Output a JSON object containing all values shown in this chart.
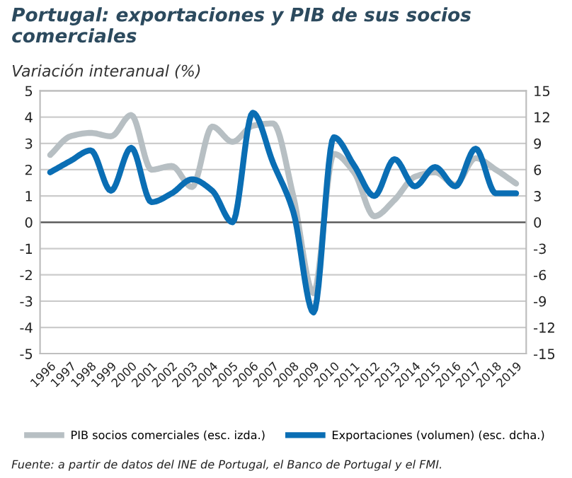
{
  "chart_data": {
    "type": "line",
    "title": "Portugal: exportaciones y PIB de sus socios comerciales",
    "subtitle": "Variación interanual (%)",
    "categories": [
      "1996",
      "1997",
      "1998",
      "1999",
      "2000",
      "2001",
      "2002",
      "2003",
      "2004",
      "2005",
      "2006",
      "2007",
      "2008",
      "2009",
      "2010",
      "2011",
      "2012",
      "2013",
      "2014",
      "2015",
      "2016",
      "2017",
      "2018",
      "2019"
    ],
    "series": [
      {
        "name": "PIB socios comerciales (esc. izda.)",
        "color": "#b7bfc3",
        "values": [
          2.56,
          3.27,
          3.4,
          3.27,
          4.08,
          2.0,
          2.14,
          1.34,
          3.64,
          3.06,
          3.67,
          3.76,
          1.0,
          -2.7,
          2.6,
          1.9,
          0.23,
          0.85,
          1.73,
          1.9,
          1.43,
          2.44,
          2.0,
          1.47
        ]
      },
      {
        "name": "Exportaciones (volumen) (esc. dcha.)",
        "color": "#0a6eb4",
        "axis": "y2",
        "values": [
          5.7,
          7.0,
          8.2,
          3.6,
          8.5,
          2.3,
          3.3,
          4.9,
          3.6,
          0,
          12.5,
          6.8,
          1.2,
          -10.3,
          9.7,
          6.5,
          3.0,
          7.2,
          4.1,
          6.3,
          4.1,
          8.4,
          3.3,
          3.3
        ]
      }
    ],
    "ylim": [
      -5,
      5
    ],
    "yticks": [
      -5,
      -4,
      -3,
      -2,
      -1,
      0,
      1,
      2,
      3,
      4,
      5
    ],
    "y2lim": [
      -15,
      15
    ],
    "y2ticks": [
      -15,
      -12,
      -9,
      -6,
      -3,
      0,
      3,
      6,
      9,
      12,
      15
    ],
    "grid": "y",
    "legend": "bottom",
    "line_style": "solid",
    "marker": "none",
    "annotations": [
      "Fuente: a partir de datos del INE de Portugal, el Banco de Portugal y el FMI."
    ]
  }
}
